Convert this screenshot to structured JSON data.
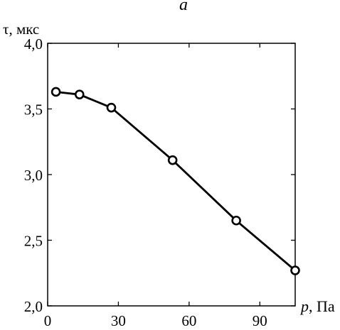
{
  "panel_label": "a",
  "chart_data": {
    "type": "line",
    "ylabel": "τ, мкс",
    "xlabel_symbol": "p",
    "xlabel_unit": ", Па",
    "xlim": [
      0,
      105
    ],
    "ylim": [
      2.0,
      4.0
    ],
    "x_ticks": [
      {
        "value": 0,
        "label": "0"
      },
      {
        "value": 30,
        "label": "30"
      },
      {
        "value": 60,
        "label": "60"
      },
      {
        "value": 90,
        "label": "90"
      }
    ],
    "y_ticks": [
      {
        "value": 2.0,
        "label": "2,0"
      },
      {
        "value": 2.5,
        "label": "2,5"
      },
      {
        "value": 3.0,
        "label": "3,0"
      },
      {
        "value": 3.5,
        "label": "3,5"
      },
      {
        "value": 4.0,
        "label": "4,0"
      }
    ],
    "series": [
      {
        "marker": "circle",
        "color": "#000000",
        "x": [
          3.5,
          13.5,
          27,
          53,
          80,
          105
        ],
        "y": [
          3.63,
          3.61,
          3.51,
          3.11,
          2.65,
          2.27
        ]
      }
    ],
    "grid": false
  }
}
